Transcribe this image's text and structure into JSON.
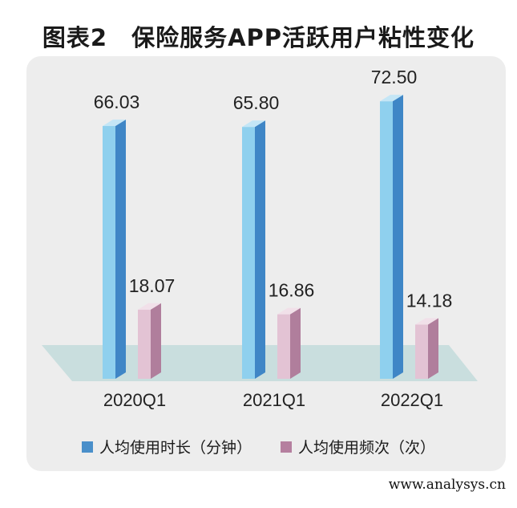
{
  "title": "图表2　保险服务APP活跃用户粘性变化",
  "watermark": "www.analysys.cn",
  "colors": {
    "series1_front": "#8fd0ee",
    "series1_side": "#3f86c6",
    "series1_top": "#c4e6f6",
    "series2_front": "#e3c3d4",
    "series2_side": "#b07e9c",
    "series2_top": "#f1e0e9",
    "floor": "#c9dede",
    "panel": "#ededed"
  },
  "chart_data": {
    "type": "bar",
    "title": "图表2　保险服务APP活跃用户粘性变化",
    "categories": [
      "2020Q1",
      "2021Q1",
      "2022Q1"
    ],
    "series": [
      {
        "name": "人均使用时长（分钟）",
        "values": [
          66.03,
          65.8,
          72.5
        ],
        "labels": [
          "66.03",
          "65.80",
          "72.50"
        ]
      },
      {
        "name": "人均使用频次（次）",
        "values": [
          18.07,
          16.86,
          14.18
        ],
        "labels": [
          "18.07",
          "16.86",
          "14.18"
        ]
      }
    ],
    "legend_position": "bottom",
    "grid": false
  }
}
